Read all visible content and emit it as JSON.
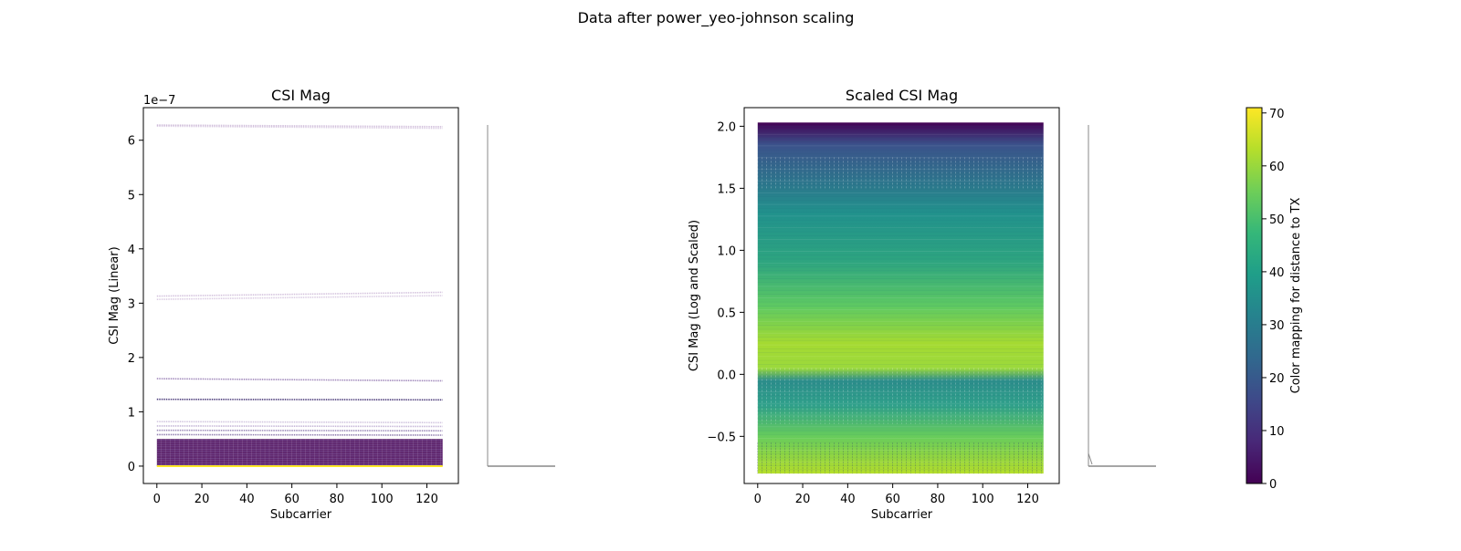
{
  "figure": {
    "suptitle": "Data after power_yeo-johnson scaling"
  },
  "chart_data": [
    {
      "type": "line",
      "title": "CSI Mag",
      "xlabel": "Subcarrier",
      "ylabel": "CSI Mag (Linear)",
      "offset_label": "1e−7",
      "xlim": [
        -6,
        134
      ],
      "ylim": [
        -0.32,
        6.6
      ],
      "xticks": [
        "0",
        "20",
        "40",
        "60",
        "80",
        "100",
        "120"
      ],
      "yticks": [
        "0",
        "1",
        "2",
        "3",
        "4",
        "5",
        "6"
      ],
      "x_range": [
        0,
        127
      ],
      "lines": [
        {
          "start": 6.28,
          "end": 6.25,
          "color": "#b89cc8",
          "opacity": 0.6
        },
        {
          "start": 6.26,
          "end": 6.22,
          "color": "#b89cc8",
          "opacity": 0.5
        },
        {
          "start": 3.13,
          "end": 3.2,
          "color": "#b89cc8",
          "opacity": 0.6
        },
        {
          "start": 3.07,
          "end": 3.14,
          "color": "#b89cc8",
          "opacity": 0.5
        },
        {
          "start": 1.61,
          "end": 1.57,
          "color": "#7b5aa0",
          "opacity": 0.7
        },
        {
          "start": 1.23,
          "end": 1.22,
          "color": "#3b2a6e",
          "opacity": 0.9
        },
        {
          "start": 0.82,
          "end": 0.8,
          "color": "#a58cc0",
          "opacity": 0.5
        },
        {
          "start": 0.74,
          "end": 0.73,
          "color": "#8c6fb0",
          "opacity": 0.5
        },
        {
          "start": 0.66,
          "end": 0.65,
          "color": "#5a3d8a",
          "opacity": 0.6
        },
        {
          "start": 0.58,
          "end": 0.57,
          "color": "#48287a",
          "opacity": 0.6
        }
      ],
      "band": {
        "from": 0.0,
        "to": 0.5,
        "color": "#440154"
      },
      "bottom_line": {
        "value": 0.0,
        "color": "#fde725"
      }
    },
    {
      "type": "line",
      "title": "Scaled CSI Mag",
      "xlabel": "Subcarrier",
      "ylabel": "CSI Mag (Log and Scaled)",
      "xlim": [
        -6,
        134
      ],
      "ylim": [
        -0.88,
        2.15
      ],
      "xticks": [
        "0",
        "20",
        "40",
        "60",
        "80",
        "100",
        "120"
      ],
      "yticks": [
        "−0.5",
        "0.0",
        "0.5",
        "1.0",
        "1.5",
        "2.0"
      ],
      "x_range": [
        0,
        127
      ],
      "top": 2.03,
      "bottom": -0.8,
      "gradient": [
        {
          "y": 2.03,
          "color": "#440154"
        },
        {
          "y": 1.85,
          "color": "#3b528b"
        },
        {
          "y": 1.3,
          "color": "#21918c"
        },
        {
          "y": 0.9,
          "color": "#2ea57f"
        },
        {
          "y": 0.55,
          "color": "#5ec962"
        },
        {
          "y": 0.25,
          "color": "#a5da31"
        },
        {
          "y": 0.05,
          "color": "#9bd93c"
        },
        {
          "y": -0.05,
          "color": "#2b8c8a"
        },
        {
          "y": -0.25,
          "color": "#2fa08a"
        },
        {
          "y": -0.5,
          "color": "#67cc5c"
        },
        {
          "y": -0.8,
          "color": "#b5de2b"
        }
      ]
    }
  ],
  "colorbar": {
    "label": "Color mapping for distance to TX",
    "range": [
      0,
      71
    ],
    "ticks": [
      "0",
      "10",
      "20",
      "30",
      "40",
      "50",
      "60",
      "70"
    ],
    "colormap": [
      "#440154",
      "#482878",
      "#3e4989",
      "#31688e",
      "#26828e",
      "#1f9e89",
      "#35b779",
      "#6ece58",
      "#b5de2b",
      "#fde725"
    ]
  },
  "colors": {
    "axis": "#000000",
    "marginal": "#888888"
  }
}
